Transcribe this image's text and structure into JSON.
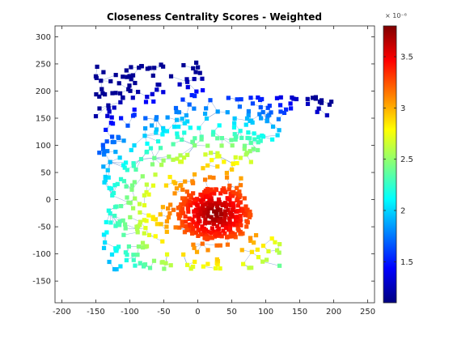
{
  "chart_data": {
    "type": "scatter",
    "title": "Closeness Centrality Scores - Weighted",
    "xlabel": "",
    "ylabel": "",
    "xlim": [
      -210,
      260
    ],
    "ylim": [
      -190,
      320
    ],
    "x_ticks": [
      -200,
      -150,
      -100,
      -50,
      0,
      50,
      100,
      150,
      200,
      250
    ],
    "y_ticks": [
      -150,
      -100,
      -50,
      0,
      50,
      100,
      150,
      200,
      250,
      300
    ],
    "colorbar": {
      "colormap": "jet",
      "range": [
        1.1e-06,
        3.8e-06
      ],
      "ticks": [
        1.5,
        2,
        2.5,
        3,
        3.5
      ],
      "exponent_label": "× 10⁻⁶"
    },
    "description_center": [
      25,
      -25
    ],
    "grid": false,
    "legend": "none"
  }
}
